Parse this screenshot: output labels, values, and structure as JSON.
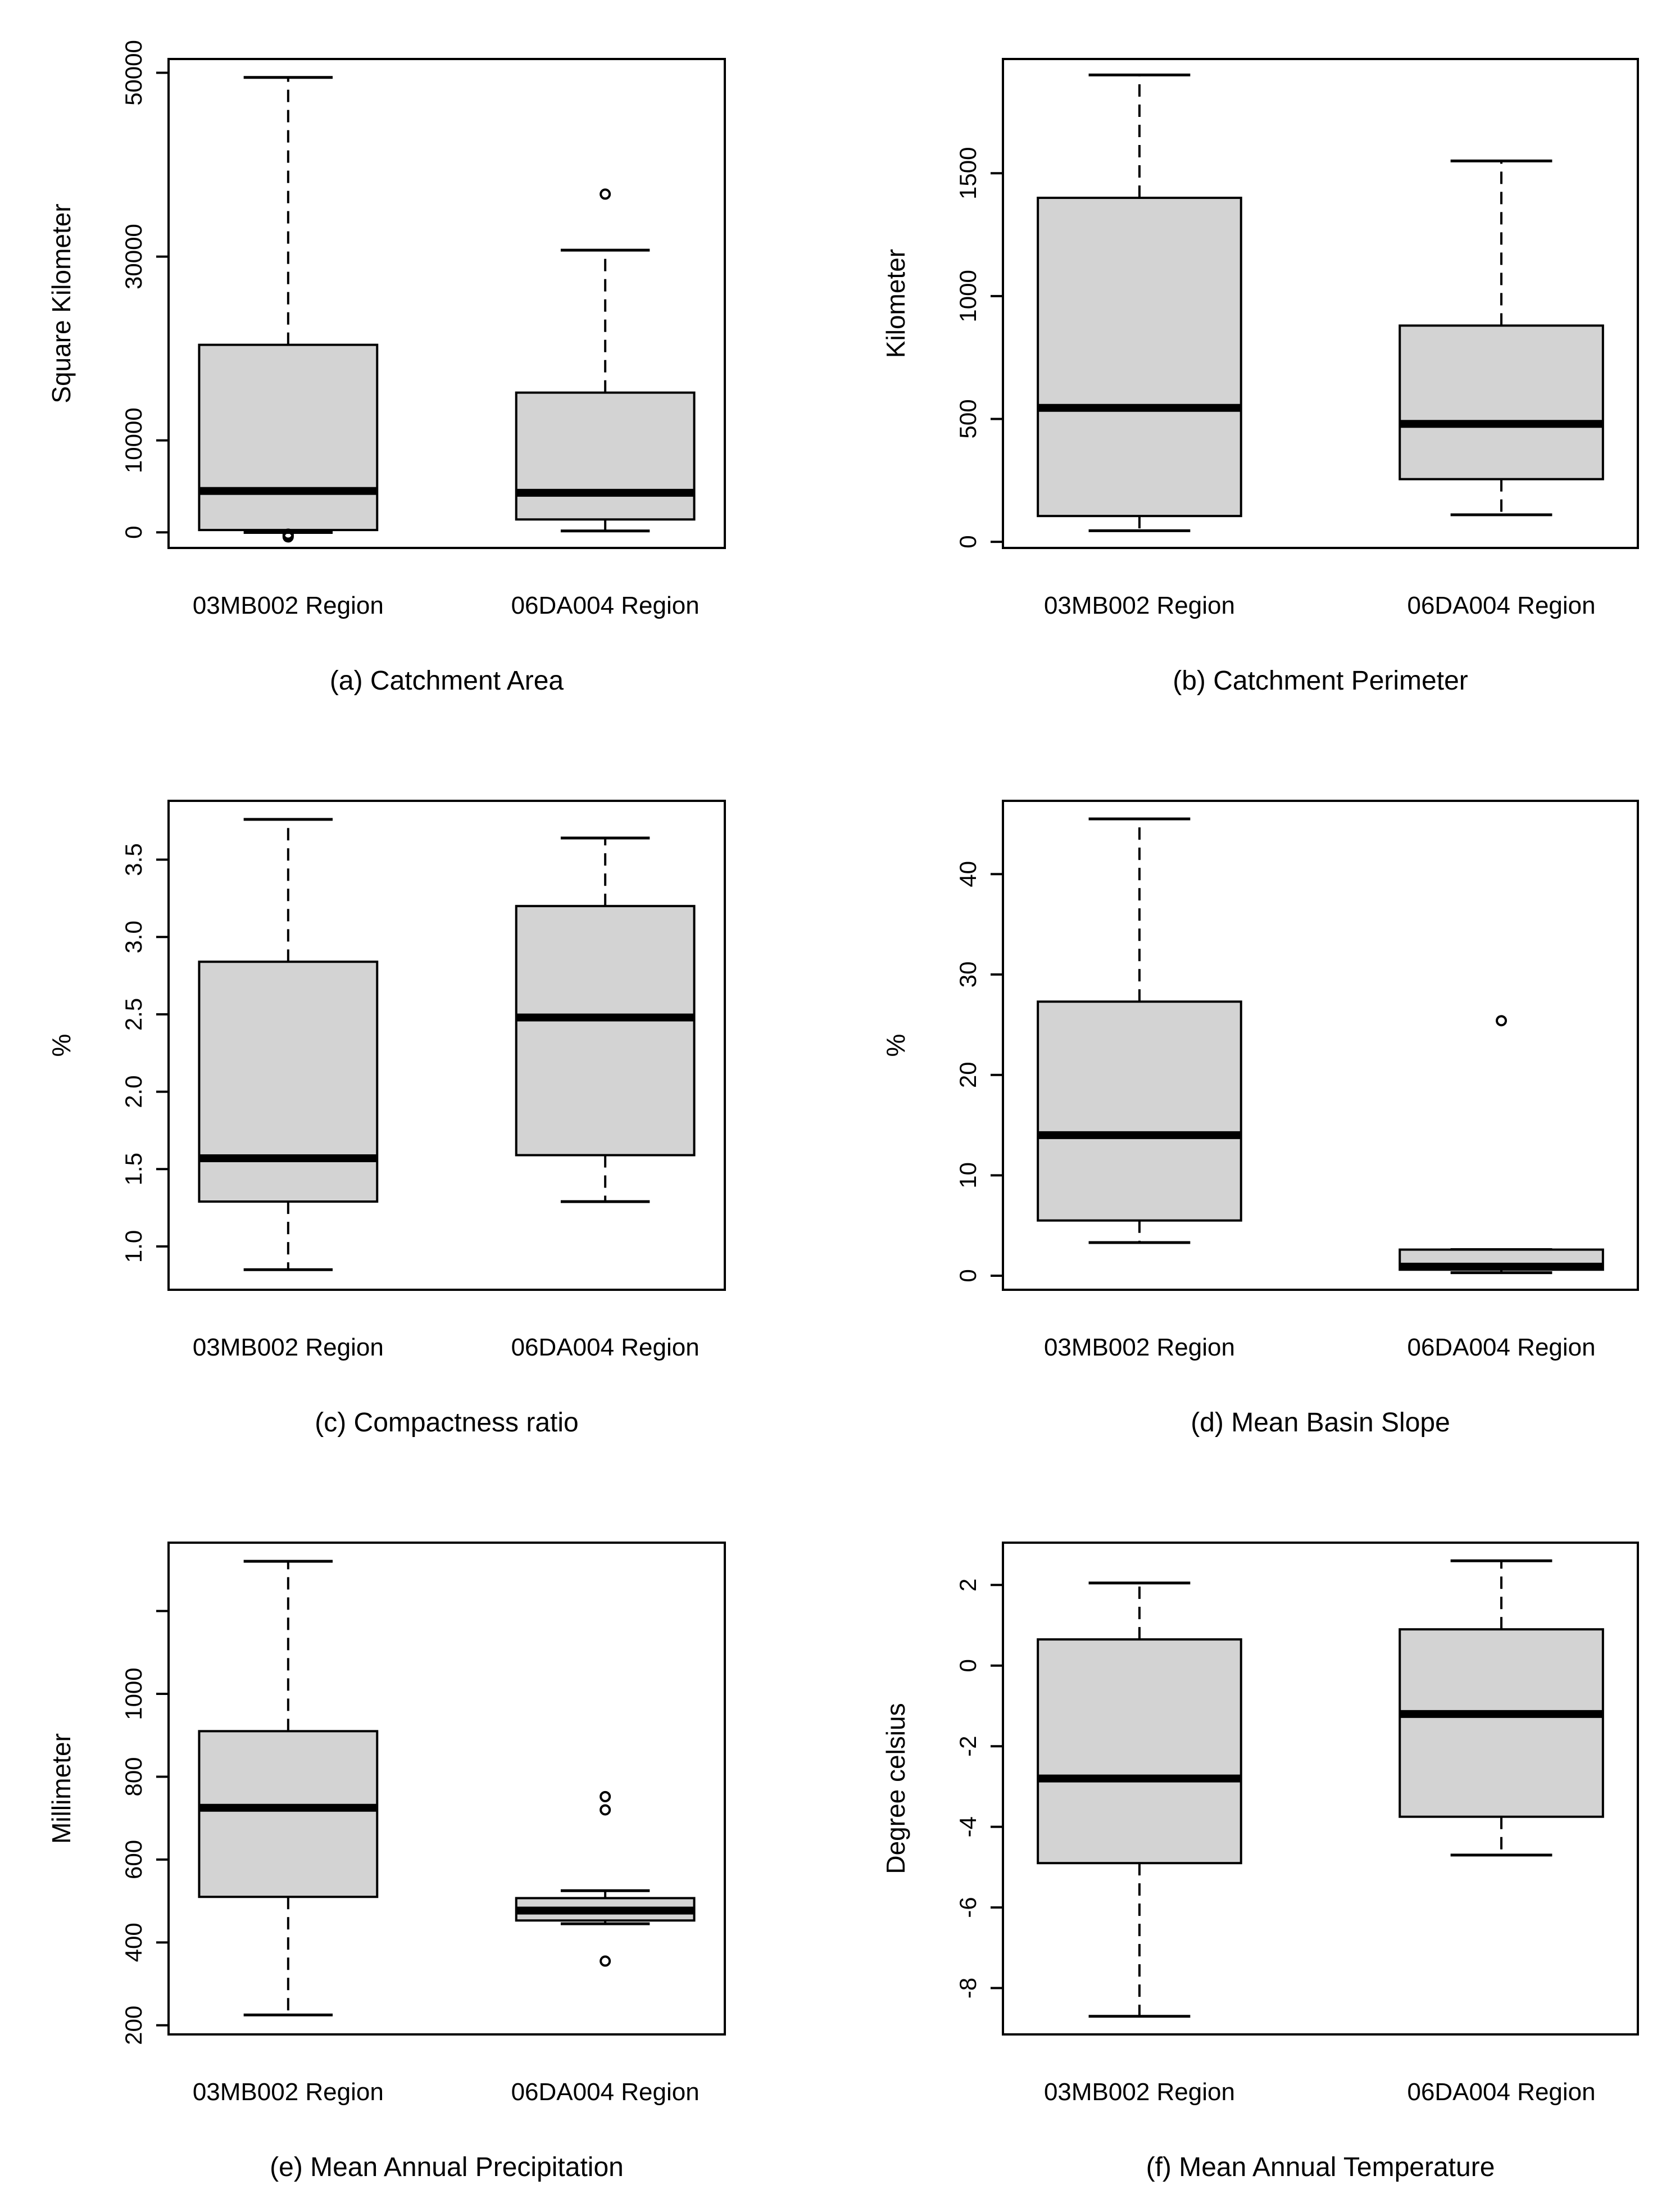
{
  "figure": {
    "categories": [
      "03MB002 Region",
      "06DA004 Region"
    ],
    "box_fill": "#d3d3d3",
    "line_color": "#000000"
  },
  "chart_data": [
    {
      "type": "boxplot",
      "caption": "(a) Catchment Area",
      "ylabel": "Square Kilometer",
      "ylim": [
        -1700,
        51500
      ],
      "yticks": [
        0,
        10000,
        30000,
        50000
      ],
      "tick_labels": [
        "0",
        "10000",
        "30000",
        "50000"
      ],
      "categories": [
        "03MB002 Region",
        "06DA004 Region"
      ],
      "boxes": [
        {
          "whisker_low": -20,
          "q1": 250,
          "median": 4500,
          "q3": 20400,
          "whisker_high": 49500,
          "outliers": [
            -200,
            -300,
            -400,
            -500
          ]
        },
        {
          "whisker_low": 150,
          "q1": 1400,
          "median": 4300,
          "q3": 15200,
          "whisker_high": 30700,
          "outliers": [
            36800
          ]
        }
      ]
    },
    {
      "type": "boxplot",
      "caption": "(b) Catchment Perimeter",
      "ylabel": "Kilometer",
      "ylim": [
        -25,
        1965
      ],
      "yticks": [
        0,
        500,
        1000,
        1500
      ],
      "tick_labels": [
        "0",
        "500",
        "1000",
        "1500"
      ],
      "categories": [
        "03MB002 Region",
        "06DA004 Region"
      ],
      "boxes": [
        {
          "whisker_low": 45,
          "q1": 105,
          "median": 545,
          "q3": 1400,
          "whisker_high": 1900,
          "outliers": []
        },
        {
          "whisker_low": 110,
          "q1": 255,
          "median": 480,
          "q3": 880,
          "whisker_high": 1550,
          "outliers": []
        }
      ]
    },
    {
      "type": "boxplot",
      "caption": "(c) Compactness ratio",
      "ylabel": "%",
      "ylim": [
        0.72,
        3.88
      ],
      "yticks": [
        1.0,
        1.5,
        2.0,
        2.5,
        3.0,
        3.5
      ],
      "tick_labels": [
        "1.0",
        "1.5",
        "2.0",
        "2.5",
        "3.0",
        "3.5"
      ],
      "categories": [
        "03MB002 Region",
        "06DA004 Region"
      ],
      "boxes": [
        {
          "whisker_low": 0.85,
          "q1": 1.29,
          "median": 1.57,
          "q3": 2.84,
          "whisker_high": 3.76,
          "outliers": []
        },
        {
          "whisker_low": 1.29,
          "q1": 1.59,
          "median": 2.48,
          "q3": 3.2,
          "whisker_high": 3.64,
          "outliers": []
        }
      ]
    },
    {
      "type": "boxplot",
      "caption": "(d) Mean Basin Slope",
      "ylabel": "%",
      "ylim": [
        -1.4,
        47.3
      ],
      "yticks": [
        0,
        10,
        20,
        30,
        40
      ],
      "tick_labels": [
        "0",
        "10",
        "20",
        "30",
        "40"
      ],
      "categories": [
        "03MB002 Region",
        "06DA004 Region"
      ],
      "boxes": [
        {
          "whisker_low": 3.3,
          "q1": 5.5,
          "median": 14.0,
          "q3": 27.3,
          "whisker_high": 45.5,
          "outliers": []
        },
        {
          "whisker_low": 0.3,
          "q1": 0.6,
          "median": 0.9,
          "q3": 2.6,
          "whisker_high": 2.6,
          "outliers": [
            25.4
          ]
        }
      ]
    },
    {
      "type": "boxplot",
      "caption": "(e) Mean Annual Precipitation",
      "ylabel": "Millimeter",
      "ylim": [
        178,
        1365
      ],
      "yticks": [
        200,
        400,
        600,
        800,
        1000
      ],
      "tick_labels": [
        "200",
        "400",
        "600",
        "800",
        "1000"
      ],
      "extra_ticks": [
        1200
      ],
      "categories": [
        "03MB002 Region",
        "06DA004 Region"
      ],
      "boxes": [
        {
          "whisker_low": 225,
          "q1": 510,
          "median": 725,
          "q3": 910,
          "whisker_high": 1320,
          "outliers": []
        },
        {
          "whisker_low": 445,
          "q1": 453,
          "median": 477,
          "q3": 507,
          "whisker_high": 525,
          "outliers": [
            355,
            720,
            752
          ]
        }
      ]
    },
    {
      "type": "boxplot",
      "caption": "(f) Mean Annual Temperature",
      "ylabel": "Degree celsius",
      "ylim": [
        -9.15,
        3.05
      ],
      "yticks": [
        -8,
        -6,
        -4,
        -2,
        0,
        2
      ],
      "tick_labels": [
        "-8",
        "-6",
        "-4",
        "-2",
        "0",
        "2"
      ],
      "categories": [
        "03MB002 Region",
        "06DA004 Region"
      ],
      "boxes": [
        {
          "whisker_low": -8.7,
          "q1": -4.9,
          "median": -2.8,
          "q3": 0.65,
          "whisker_high": 2.05,
          "outliers": []
        },
        {
          "whisker_low": -4.7,
          "q1": -3.75,
          "median": -1.2,
          "q3": 0.9,
          "whisker_high": 2.6,
          "outliers": []
        }
      ]
    }
  ]
}
